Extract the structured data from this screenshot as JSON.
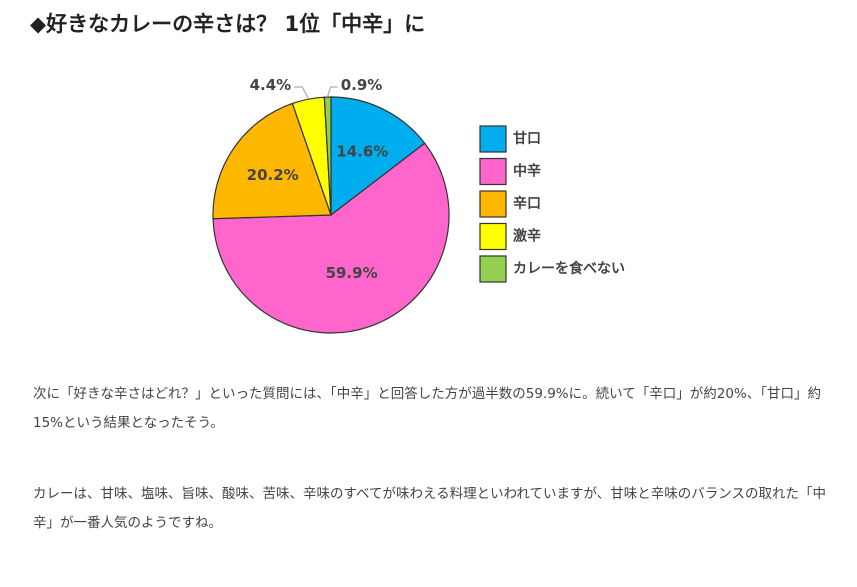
{
  "heading": "◆好きなカレーの辛さは？ 1位「中辛」に",
  "chart_data": {
    "type": "pie",
    "title": "",
    "slices": [
      {
        "name": "甘口",
        "value": 14.6,
        "label": "14.6%",
        "color": "#00AEEF"
      },
      {
        "name": "中辛",
        "value": 59.9,
        "label": "59.9%",
        "color": "#FF66CC"
      },
      {
        "name": "辛口",
        "value": 20.2,
        "label": "20.2%",
        "color": "#FFB800"
      },
      {
        "name": "激辛",
        "value": 4.4,
        "label": "4.4%",
        "color": "#FFFF00"
      },
      {
        "name": "カレーを食べない",
        "value": 0.9,
        "label": "0.9%",
        "color": "#92D050"
      }
    ],
    "legend_position": "right"
  },
  "paragraphs": [
    "次に「好きな辛さはどれ？」といった質問には、「中辛」と回答した方が過半数の59.9%に。続いて「辛口」が約20%、「甘口」約15%という結果となったそう。",
    "カレーは、甘味、塩味、旨味、酸味、苦味、辛味のすべてが味わえる料理といわれていますが、甘味と辛味のバランスの取れた「中辛」が一番人気のようですね。"
  ]
}
